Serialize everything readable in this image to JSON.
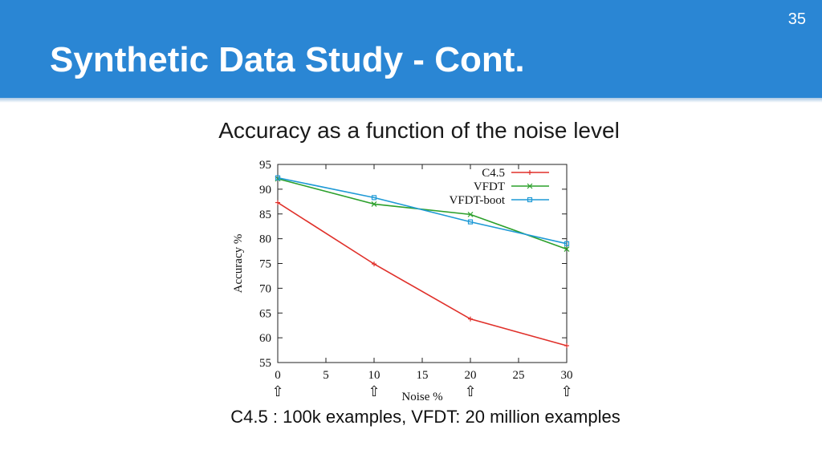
{
  "slide": {
    "title": "Synthetic Data Study - Cont.",
    "number": "35",
    "heading": "Accuracy as a function of the noise level",
    "caption": "C4.5 : 100k examples, VFDT: 20 million examples"
  },
  "arrows": {
    "glyph": "⇧",
    "x": [
      0,
      10,
      20,
      30
    ]
  },
  "chart_data": {
    "type": "line",
    "xlabel": "Noise %",
    "ylabel": "Accuracy %",
    "xlim": [
      0,
      30
    ],
    "ylim": [
      55,
      95
    ],
    "xticks": [
      0,
      5,
      10,
      15,
      20,
      25,
      30
    ],
    "yticks": [
      55,
      60,
      65,
      70,
      75,
      80,
      85,
      90,
      95
    ],
    "grid": false,
    "legend_position": "top-right",
    "x": [
      0,
      10,
      20,
      30
    ],
    "series": [
      {
        "name": "C4.5",
        "color": "#e0302a",
        "marker": "plus",
        "values": [
          87.3,
          74.9,
          63.8,
          58.4
        ]
      },
      {
        "name": "VFDT",
        "color": "#2ca02c",
        "marker": "x",
        "values": [
          92.1,
          87.0,
          84.9,
          77.9
        ]
      },
      {
        "name": "VFDT-boot",
        "color": "#1f9ad6",
        "marker": "square",
        "values": [
          92.3,
          88.3,
          83.4,
          79.0
        ]
      }
    ]
  }
}
